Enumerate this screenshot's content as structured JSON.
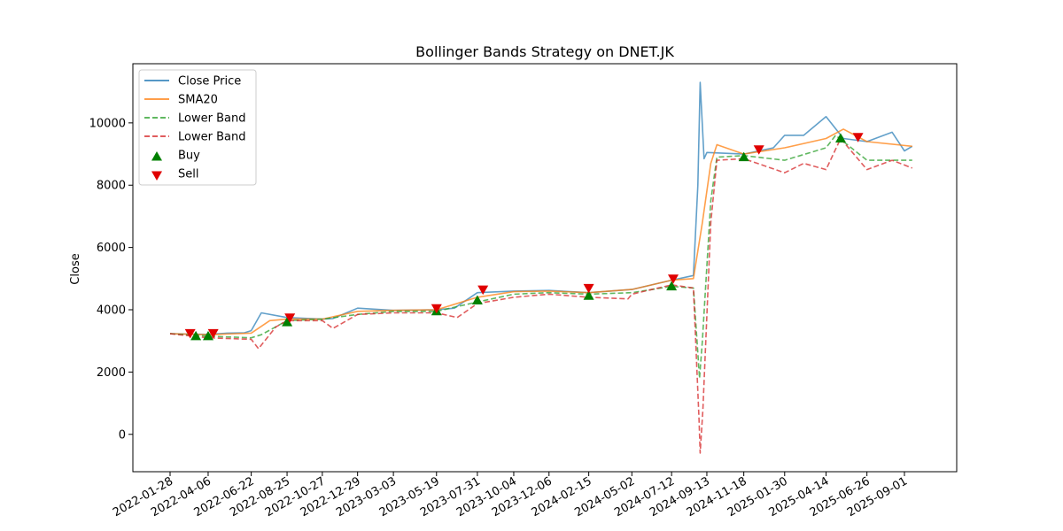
{
  "chart_data": {
    "type": "line",
    "title": "Bollinger Bands Strategy on DNET.JK",
    "ylabel": "Close",
    "xlabel": "",
    "ylim": [
      -1200,
      11900
    ],
    "yticks": [
      0,
      2000,
      4000,
      6000,
      8000,
      10000
    ],
    "xticks": [
      "2022-01-28",
      "2022-04-06",
      "2022-06-22",
      "2022-08-25",
      "2022-10-27",
      "2022-12-29",
      "2023-03-03",
      "2023-05-19",
      "2023-07-31",
      "2023-10-04",
      "2023-12-06",
      "2024-02-15",
      "2024-05-02",
      "2024-07-12",
      "2024-09-13",
      "2024-11-18",
      "2025-01-30",
      "2025-04-14",
      "2025-06-26",
      "2025-09-01"
    ],
    "grid": false,
    "legend_position": "top-left",
    "series": [
      {
        "name": "Close Price",
        "color": "#1f77b4",
        "style": "solid",
        "x": [
          "2022-01-28",
          "2022-03-01",
          "2022-04-06",
          "2022-05-10",
          "2022-06-10",
          "2022-06-22",
          "2022-07-10",
          "2022-08-25",
          "2022-10-27",
          "2022-11-15",
          "2022-12-29",
          "2023-03-03",
          "2023-05-19",
          "2023-06-20",
          "2023-07-31",
          "2023-10-04",
          "2023-12-06",
          "2024-02-15",
          "2024-05-02",
          "2024-07-12",
          "2024-08-20",
          "2024-08-28",
          "2024-09-01",
          "2024-09-08",
          "2024-09-13",
          "2024-11-18",
          "2025-01-10",
          "2025-01-30",
          "2025-03-05",
          "2025-04-14",
          "2025-05-15",
          "2025-06-26",
          "2025-08-10",
          "2025-09-01",
          "2025-09-15"
        ],
        "y": [
          3230,
          3220,
          3210,
          3250,
          3260,
          3330,
          3900,
          3750,
          3700,
          3720,
          4050,
          3980,
          4000,
          4050,
          4550,
          4600,
          4620,
          4550,
          4650,
          4950,
          5100,
          8000,
          11300,
          8850,
          9050,
          9000,
          9200,
          9600,
          9600,
          10200,
          9500,
          9400,
          9700,
          9100,
          9250
        ]
      },
      {
        "name": "SMA20",
        "color": "#ff7f0e",
        "style": "solid",
        "x": [
          "2022-01-28",
          "2022-04-06",
          "2022-06-22",
          "2022-07-25",
          "2022-08-25",
          "2022-10-27",
          "2022-12-29",
          "2023-03-03",
          "2023-05-19",
          "2023-07-31",
          "2023-10-04",
          "2023-12-06",
          "2024-02-15",
          "2024-05-02",
          "2024-07-12",
          "2024-08-20",
          "2024-09-05",
          "2024-09-20",
          "2024-10-01",
          "2024-11-18",
          "2025-01-30",
          "2025-04-14",
          "2025-05-15",
          "2025-06-26",
          "2025-09-15"
        ],
        "y": [
          3230,
          3200,
          3250,
          3650,
          3700,
          3700,
          3950,
          3980,
          4000,
          4400,
          4580,
          4600,
          4550,
          4650,
          4950,
          5000,
          6800,
          8700,
          9300,
          9000,
          9200,
          9500,
          9800,
          9400,
          9250
        ]
      },
      {
        "name": "Lower Band",
        "color": "#2ca02c",
        "style": "dashed",
        "x": [
          "2022-01-28",
          "2022-04-06",
          "2022-06-22",
          "2022-07-10",
          "2022-08-25",
          "2022-10-27",
          "2022-12-29",
          "2023-03-03",
          "2023-05-19",
          "2023-07-31",
          "2023-10-04",
          "2023-12-06",
          "2024-02-15",
          "2024-05-02",
          "2024-07-12",
          "2024-08-20",
          "2024-08-31",
          "2024-09-05",
          "2024-09-20",
          "2024-10-01",
          "2024-11-18",
          "2025-01-30",
          "2025-04-14",
          "2025-05-01",
          "2025-06-26",
          "2025-09-15"
        ],
        "y": [
          3230,
          3150,
          3100,
          3200,
          3650,
          3700,
          3850,
          3950,
          3950,
          4250,
          4500,
          4550,
          4500,
          4550,
          4750,
          4700,
          1800,
          3000,
          7500,
          8900,
          8950,
          8800,
          9200,
          9600,
          8800,
          8800
        ]
      },
      {
        "name": "Lower Band",
        "color": "#d62728",
        "style": "dashed",
        "x": [
          "2022-01-28",
          "2022-04-06",
          "2022-06-22",
          "2022-07-05",
          "2022-08-05",
          "2022-08-25",
          "2022-10-27",
          "2022-11-15",
          "2022-12-29",
          "2023-03-03",
          "2023-05-19",
          "2023-06-25",
          "2023-07-31",
          "2023-10-04",
          "2023-12-06",
          "2024-02-15",
          "2024-04-25",
          "2024-05-02",
          "2024-07-12",
          "2024-08-20",
          "2024-08-30",
          "2024-09-01",
          "2024-09-06",
          "2024-09-20",
          "2024-10-01",
          "2024-11-18",
          "2025-01-30",
          "2025-03-05",
          "2025-04-14",
          "2025-05-10",
          "2025-06-26",
          "2025-08-10",
          "2025-09-15"
        ],
        "y": [
          3230,
          3100,
          3050,
          2750,
          3450,
          3650,
          3650,
          3400,
          3850,
          3900,
          3900,
          3750,
          4200,
          4400,
          4500,
          4400,
          4350,
          4500,
          4800,
          4700,
          500,
          -600,
          800,
          6800,
          8800,
          8850,
          8400,
          8700,
          8500,
          9500,
          8500,
          8800,
          8550
        ]
      }
    ],
    "buy_signals": {
      "name": "Buy",
      "color": "#008000",
      "marker": "triangle-up",
      "x": [
        "2022-03-15",
        "2022-04-06",
        "2022-08-25",
        "2023-05-19",
        "2023-07-31",
        "2024-02-15",
        "2024-07-12",
        "2024-11-18",
        "2025-05-10"
      ],
      "y": [
        3150,
        3150,
        3600,
        3950,
        4300,
        4450,
        4750,
        8900,
        9500
      ]
    },
    "sell_signals": {
      "name": "Sell",
      "color": "#e00000",
      "marker": "triangle-down",
      "x": [
        "2022-03-05",
        "2022-04-15",
        "2022-08-30",
        "2023-05-19",
        "2023-08-10",
        "2024-02-15",
        "2024-07-15",
        "2024-12-15",
        "2025-06-10"
      ],
      "y": [
        3250,
        3250,
        3750,
        4050,
        4650,
        4700,
        5000,
        9150,
        9550
      ]
    }
  }
}
